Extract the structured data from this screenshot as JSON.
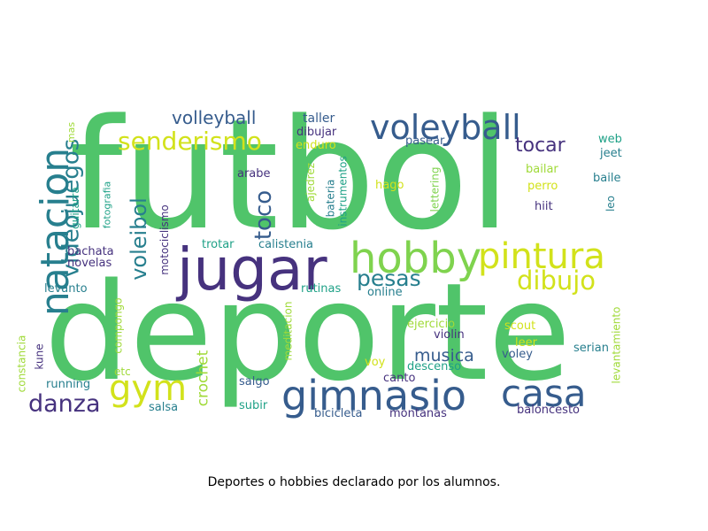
{
  "caption": "Deportes o hobbies declarado por los alumnos.",
  "palette": {
    "green": "#50c46a",
    "lime": "#7fd34e",
    "yellow": "#d2e21b",
    "purple": "#46327e",
    "blue": "#365c8d",
    "teal": "#277f8e",
    "cyan": "#1fa187",
    "light_green": "#a0da39"
  },
  "words": [
    {
      "text": "futbol",
      "color": "green"
    },
    {
      "text": "deporte",
      "color": "green"
    },
    {
      "text": "jugar",
      "color": "purple"
    },
    {
      "text": "hobby",
      "color": "lime"
    },
    {
      "text": "pintura",
      "color": "yellow"
    },
    {
      "text": "gimnasio",
      "color": "blue"
    },
    {
      "text": "casa",
      "color": "blue"
    },
    {
      "text": "voleyball",
      "color": "blue"
    },
    {
      "text": "natacion",
      "color": "teal"
    },
    {
      "text": "videojuegos",
      "color": "teal"
    },
    {
      "text": "senderismo",
      "color": "yellow"
    },
    {
      "text": "gym",
      "color": "yellow"
    },
    {
      "text": "danza",
      "color": "purple"
    },
    {
      "text": "dibujo",
      "color": "yellow"
    },
    {
      "text": "pesas",
      "color": "teal"
    },
    {
      "text": "voleibol",
      "color": "teal"
    },
    {
      "text": "toco",
      "color": "blue"
    },
    {
      "text": "volleyball",
      "color": "blue"
    },
    {
      "text": "tocar",
      "color": "purple"
    },
    {
      "text": "musica",
      "color": "blue"
    },
    {
      "text": "crochet",
      "color": "light_green"
    },
    {
      "text": "mas",
      "color": "light_green"
    },
    {
      "text": "guitarra",
      "color": "cyan"
    },
    {
      "text": "fotografia",
      "color": "cyan"
    },
    {
      "text": "taller",
      "color": "blue"
    },
    {
      "text": "dibujar",
      "color": "purple"
    },
    {
      "text": "enduro",
      "color": "yellow"
    },
    {
      "text": "pasear",
      "color": "blue"
    },
    {
      "text": "web",
      "color": "cyan"
    },
    {
      "text": "jeet",
      "color": "teal"
    },
    {
      "text": "arabe",
      "color": "purple"
    },
    {
      "text": "ajedrez",
      "color": "light_green"
    },
    {
      "text": "bateria",
      "color": "teal"
    },
    {
      "text": "instrumentos",
      "color": "cyan"
    },
    {
      "text": "hago",
      "color": "yellow"
    },
    {
      "text": "lettering",
      "color": "lime"
    },
    {
      "text": "bailar",
      "color": "light_green"
    },
    {
      "text": "baile",
      "color": "teal"
    },
    {
      "text": "perro",
      "color": "yellow"
    },
    {
      "text": "hiit",
      "color": "purple"
    },
    {
      "text": "leo",
      "color": "teal"
    },
    {
      "text": "motociclismo",
      "color": "purple"
    },
    {
      "text": "trotar",
      "color": "cyan"
    },
    {
      "text": "calistenia",
      "color": "teal"
    },
    {
      "text": "bachata",
      "color": "purple"
    },
    {
      "text": "novelas",
      "color": "purple"
    },
    {
      "text": "levanto",
      "color": "teal"
    },
    {
      "text": "rutinas",
      "color": "cyan"
    },
    {
      "text": "online",
      "color": "teal"
    },
    {
      "text": "compongo",
      "color": "light_green"
    },
    {
      "text": "meditacion",
      "color": "light_green"
    },
    {
      "text": "ejercicio",
      "color": "light_green"
    },
    {
      "text": "scout",
      "color": "yellow"
    },
    {
      "text": "violin",
      "color": "purple"
    },
    {
      "text": "leer",
      "color": "yellow"
    },
    {
      "text": "serian",
      "color": "teal"
    },
    {
      "text": "levantamiento",
      "color": "light_green"
    },
    {
      "text": "constancia",
      "color": "light_green"
    },
    {
      "text": "kune",
      "color": "purple"
    },
    {
      "text": "running",
      "color": "teal"
    },
    {
      "text": "etc",
      "color": "light_green"
    },
    {
      "text": "salsa",
      "color": "teal"
    },
    {
      "text": "salgo",
      "color": "blue"
    },
    {
      "text": "subir",
      "color": "cyan"
    },
    {
      "text": "canto",
      "color": "purple"
    },
    {
      "text": "voy",
      "color": "yellow"
    },
    {
      "text": "descenso",
      "color": "cyan"
    },
    {
      "text": "voley",
      "color": "blue"
    },
    {
      "text": "bicicleta",
      "color": "blue"
    },
    {
      "text": "montanas",
      "color": "purple"
    },
    {
      "text": "baloncesto",
      "color": "purple"
    }
  ]
}
